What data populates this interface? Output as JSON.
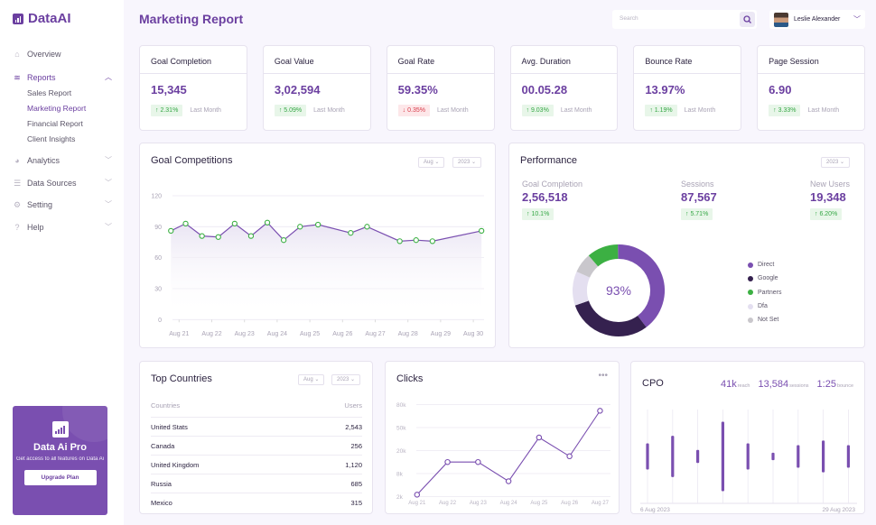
{
  "app": {
    "name": "DataAI"
  },
  "sidebar": {
    "items": [
      {
        "label": "Overview",
        "icon": "home-icon"
      },
      {
        "label": "Reports",
        "icon": "layers-icon",
        "expanded": true,
        "sub": [
          "Sales Report",
          "Marketing Report",
          "Financial Report",
          "Client Insights"
        ],
        "active_sub": "Marketing Report"
      },
      {
        "label": "Analytics",
        "icon": "pie-icon"
      },
      {
        "label": "Data Sources",
        "icon": "database-icon"
      },
      {
        "label": "Setting",
        "icon": "gear-icon"
      },
      {
        "label": "Help",
        "icon": "help-icon"
      }
    ],
    "promo": {
      "title": "Data Ai Pro",
      "text": "Get access to all features on Data Ai",
      "button": "Upgrade Plan"
    }
  },
  "header": {
    "title": "Marketing Report",
    "search_placeholder": "Search",
    "user": "Leslie Alexander"
  },
  "kpis": [
    {
      "label": "Goal Completion",
      "value": "15,345",
      "change": "2.31%",
      "dir": "up",
      "period": "Last Month"
    },
    {
      "label": "Goal Value",
      "value": "3,02,594",
      "change": "5.09%",
      "dir": "up",
      "period": "Last Month"
    },
    {
      "label": "Goal Rate",
      "value": "59.35%",
      "change": "0.35%",
      "dir": "down",
      "period": "Last Month"
    },
    {
      "label": "Avg. Duration",
      "value": "00.05.28",
      "change": "9.03%",
      "dir": "up",
      "period": "Last Month"
    },
    {
      "label": "Bounce Rate",
      "value": "13.97%",
      "change": "1.19%",
      "dir": "up",
      "period": "Last Month"
    },
    {
      "label": "Page Session",
      "value": "6.90",
      "change": "3.33%",
      "dir": "up",
      "period": "Last Month"
    }
  ],
  "goal": {
    "title": "Goal Competitions",
    "month": "Aug",
    "year": "2023"
  },
  "performance": {
    "title": "Performance",
    "year": "2023",
    "center": "93%",
    "metrics": [
      {
        "label": "Goal Completion",
        "value": "2,56,518",
        "change": "10.1%"
      },
      {
        "label": "Sessions",
        "value": "87,567",
        "change": "5.71%"
      },
      {
        "label": "New Users",
        "value": "19,348",
        "change": "6.20%"
      }
    ]
  },
  "countries": {
    "title": "Top Countries",
    "month": "Aug",
    "year": "2023",
    "headers": [
      "Countries",
      "Users"
    ],
    "rows": [
      [
        "United Stats",
        "2,543"
      ],
      [
        "Canada",
        "256"
      ],
      [
        "United Kingdom",
        "1,120"
      ],
      [
        "Russia",
        "685"
      ],
      [
        "Mexico",
        "315"
      ]
    ]
  },
  "clicks": {
    "title": "Clicks"
  },
  "cpo": {
    "title": "CPO",
    "stats": [
      {
        "value": "41k",
        "label": "reach"
      },
      {
        "value": "13,584",
        "label": "sessions"
      },
      {
        "value": "1:25",
        "label": "bounce"
      }
    ],
    "start": "6 Aug 2023",
    "end": "29 Aug 2023"
  },
  "colors": {
    "accent": "#6b3fa0",
    "marker": "#3cb043",
    "up": "#35a745",
    "down": "#d83b4a"
  },
  "chart_data": [
    {
      "type": "line",
      "title": "Goal Competitions",
      "x_unit": "day of Aug 2023",
      "x": [
        20.75,
        21.2,
        21.7,
        22.2,
        22.7,
        23.2,
        23.7,
        24.2,
        24.7,
        25.25,
        26.25,
        26.75,
        27.75,
        28.25,
        28.75,
        30.25
      ],
      "values": [
        86,
        93,
        81,
        80,
        93,
        81,
        94,
        77,
        90,
        92,
        84,
        90,
        76,
        77,
        76,
        86
      ],
      "xticks": [
        "Aug 21",
        "Aug 22",
        "Aug 23",
        "Aug 24",
        "Aug 25",
        "Aug 26",
        "Aug 27",
        "Aug 28",
        "Aug 29",
        "Aug 30"
      ],
      "yticks": [
        0,
        30,
        60,
        90,
        120
      ],
      "ylim": [
        0,
        120
      ],
      "grid": true
    },
    {
      "type": "pie",
      "title": "Performance",
      "donut": true,
      "categories": [
        "Direct",
        "Google",
        "Dfa",
        "Not Set",
        "Partners"
      ],
      "values": [
        40,
        30,
        12,
        7,
        11
      ],
      "legend": [
        "Direct",
        "Google",
        "Partners",
        "Dfa",
        "Not Set"
      ],
      "legend_position": "right",
      "colors": {
        "Direct": "#7a4fb0",
        "Google": "#35214f",
        "Partners": "#3cb043",
        "Dfa": "#e4dff0",
        "Not Set": "#c9c7cc"
      }
    },
    {
      "type": "line",
      "title": "Clicks",
      "categories": [
        "Aug 21",
        "Aug 22",
        "Aug 23",
        "Aug 24",
        "Aug 25",
        "Aug 26",
        "Aug 27"
      ],
      "values": [
        2500,
        14000,
        14000,
        6000,
        37000,
        17000,
        72000
      ],
      "yticks": [
        "2k",
        "8k",
        "20k",
        "50k",
        "80k"
      ],
      "ytick_values": [
        2000,
        8000,
        20000,
        50000,
        80000
      ],
      "grid": true
    },
    {
      "type": "bar",
      "title": "CPO",
      "subtype": "floating range",
      "x_range": [
        "6 Aug 2023",
        "29 Aug 2023"
      ],
      "ranges": [
        [
          36,
          64
        ],
        [
          28,
          72
        ],
        [
          43,
          57
        ],
        [
          13,
          87
        ],
        [
          36,
          64
        ],
        [
          46,
          54
        ],
        [
          38,
          62
        ],
        [
          33,
          67
        ],
        [
          38,
          62
        ]
      ]
    }
  ]
}
